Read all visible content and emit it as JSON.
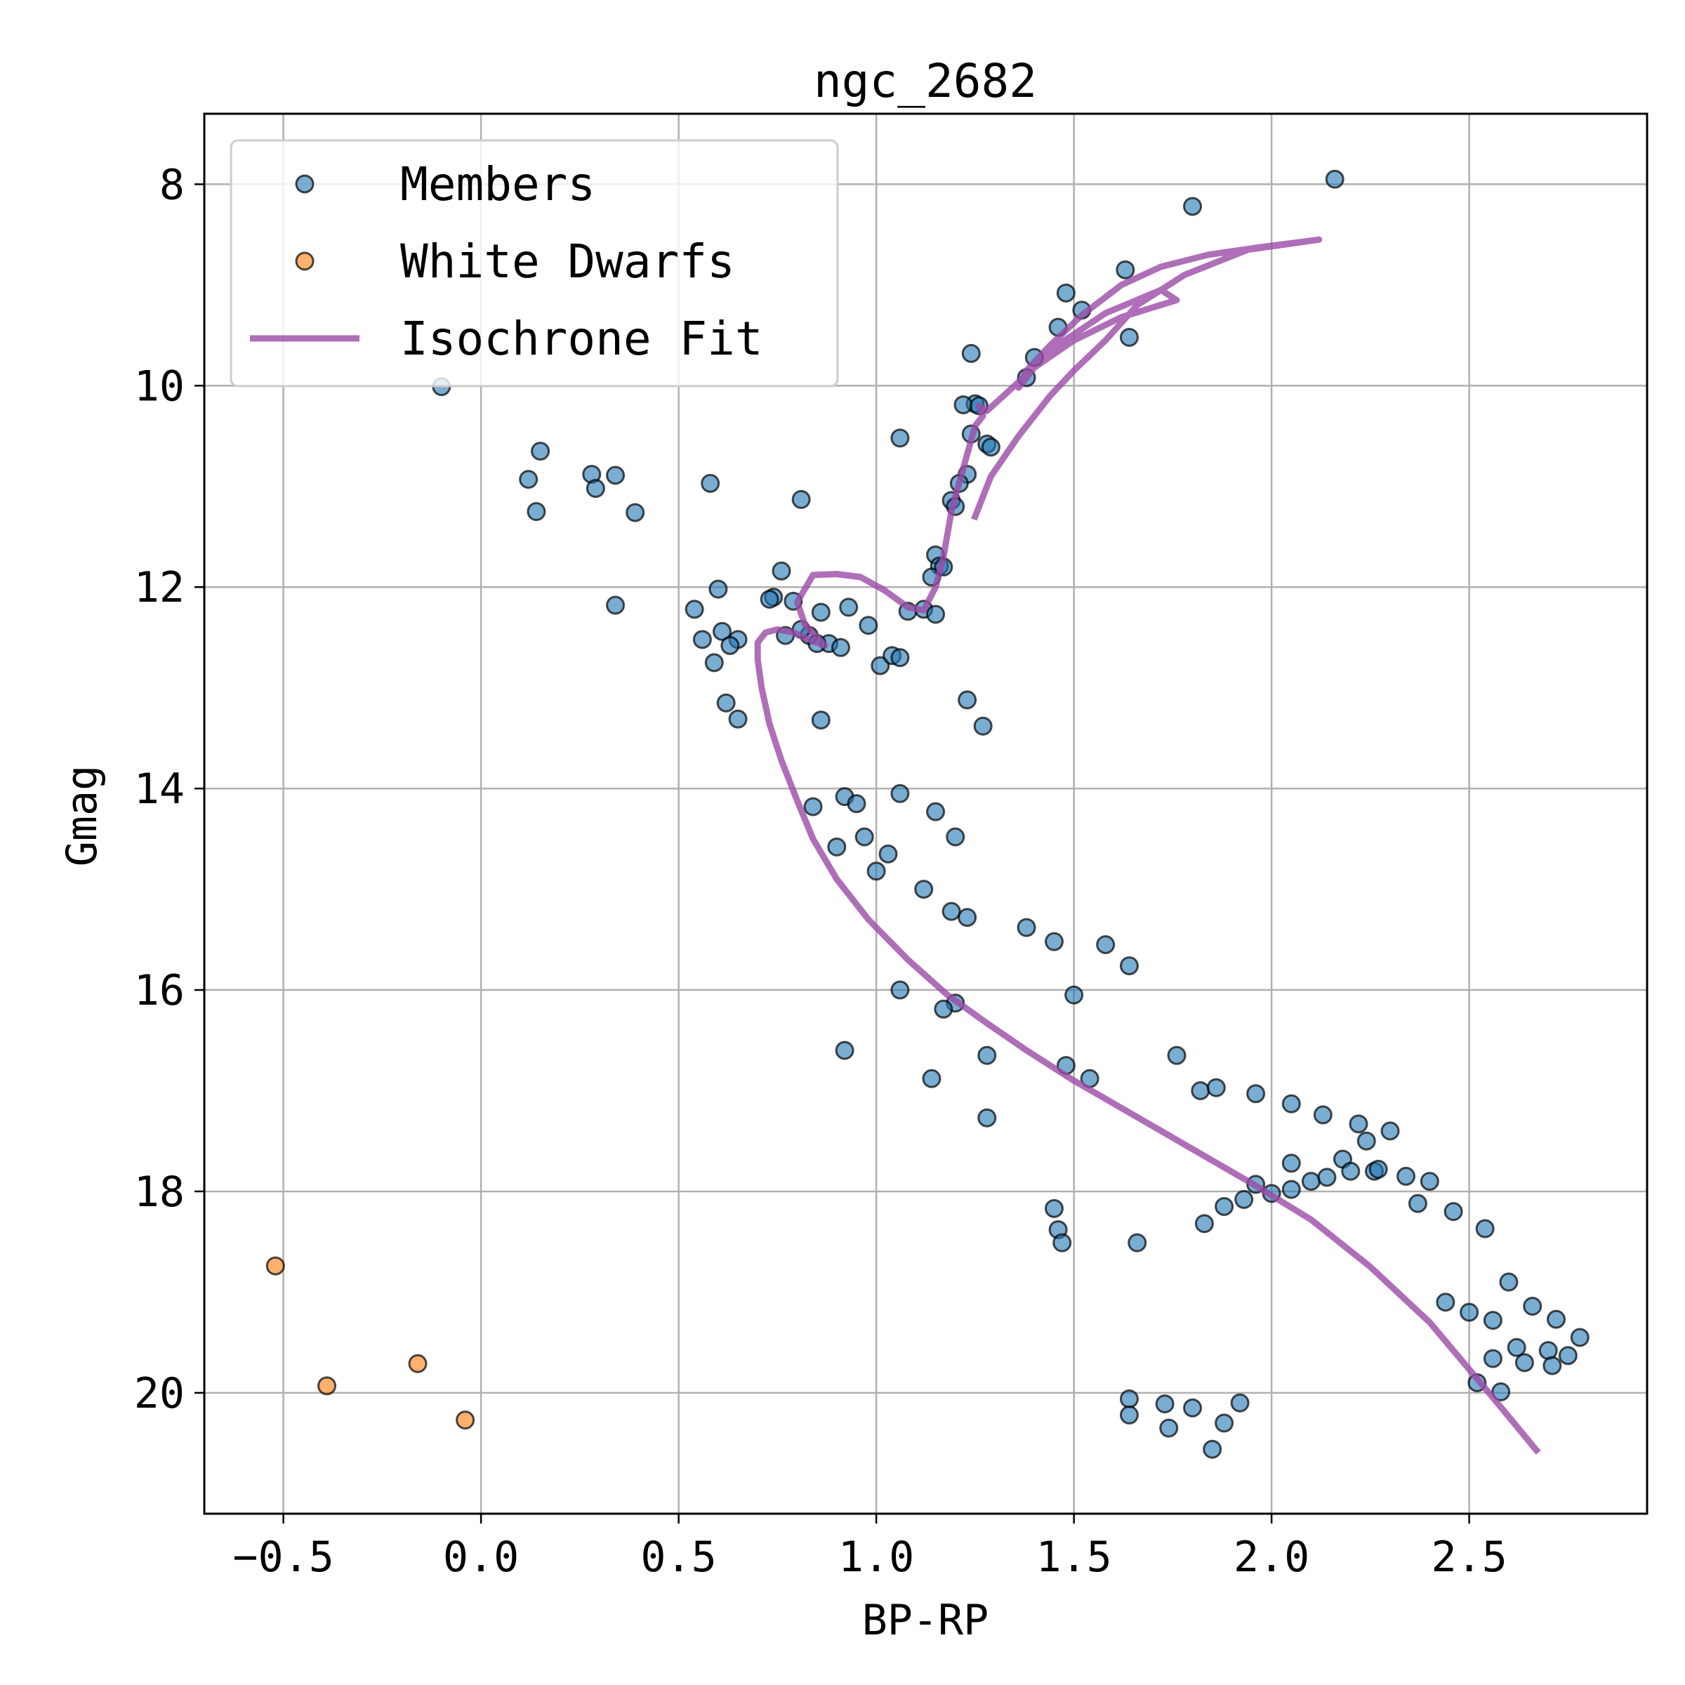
{
  "chart_data": {
    "type": "scatter",
    "title": "ngc_2682",
    "xlabel": "BP-RP",
    "ylabel": "Gmag",
    "xlim": [
      -0.7,
      2.95
    ],
    "ylim": [
      21.2,
      7.3
    ],
    "y_inverted": true,
    "grid": true,
    "legend_position": "top-left",
    "x_ticks": [
      {
        "value": -0.5,
        "label": "−0.5"
      },
      {
        "value": 0.0,
        "label": "0.0"
      },
      {
        "value": 0.5,
        "label": "0.5"
      },
      {
        "value": 1.0,
        "label": "1.0"
      },
      {
        "value": 1.5,
        "label": "1.5"
      },
      {
        "value": 2.0,
        "label": "2.0"
      },
      {
        "value": 2.5,
        "label": "2.5"
      }
    ],
    "y_ticks": [
      {
        "value": 8,
        "label": "8"
      },
      {
        "value": 10,
        "label": "10"
      },
      {
        "value": 12,
        "label": "12"
      },
      {
        "value": 14,
        "label": "14"
      },
      {
        "value": 16,
        "label": "16"
      },
      {
        "value": 18,
        "label": "18"
      },
      {
        "value": 20,
        "label": "20"
      }
    ],
    "series": [
      {
        "name": "Members",
        "kind": "scatter",
        "color": "#1f77b4",
        "edge_color": "#000000",
        "alpha": 0.6,
        "x": [
          2.16,
          1.8,
          1.63,
          1.48,
          1.52,
          1.46,
          1.64,
          1.24,
          1.4,
          1.38,
          -0.1,
          1.25,
          1.22,
          1.26,
          1.28,
          1.24,
          1.06,
          1.29,
          0.15,
          0.12,
          0.28,
          0.29,
          0.34,
          0.14,
          0.39,
          0.58,
          0.81,
          1.23,
          1.21,
          1.19,
          1.2,
          1.15,
          1.16,
          1.14,
          1.17,
          0.76,
          0.6,
          0.74,
          0.73,
          0.79,
          0.34,
          0.54,
          0.86,
          0.93,
          0.98,
          1.08,
          1.12,
          1.15,
          0.56,
          0.61,
          0.65,
          0.59,
          0.63,
          0.83,
          0.88,
          0.91,
          1.01,
          1.04,
          1.06,
          0.81,
          0.77,
          0.85,
          1.23,
          0.62,
          0.65,
          0.86,
          1.27,
          1.06,
          1.15,
          0.92,
          0.95,
          0.84,
          0.97,
          0.9,
          1.03,
          1.2,
          1.0,
          1.12,
          1.19,
          1.23,
          1.38,
          1.45,
          1.58,
          1.64,
          1.5,
          1.2,
          1.17,
          1.06,
          1.28,
          0.92,
          1.48,
          1.54,
          1.76,
          1.82,
          1.86,
          1.96,
          2.05,
          2.13,
          2.22,
          2.24,
          2.3,
          1.14,
          1.28,
          1.96,
          2.05,
          2.18,
          2.26,
          2.37,
          2.46,
          2.54,
          2.6,
          2.66,
          2.72,
          2.78,
          2.75,
          2.7,
          2.62,
          2.56,
          2.5,
          2.44,
          1.45,
          1.46,
          1.47,
          1.66,
          1.83,
          1.88,
          1.93,
          2.0,
          2.05,
          2.1,
          2.14,
          2.2,
          2.27,
          2.34,
          2.4,
          1.64,
          1.64,
          1.73,
          1.74,
          1.8,
          1.85,
          1.88,
          1.92,
          2.56,
          2.64,
          2.71,
          2.52,
          2.58
        ],
        "y": [
          7.95,
          8.22,
          8.85,
          9.08,
          9.25,
          9.42,
          9.52,
          9.68,
          9.72,
          9.92,
          10.01,
          10.18,
          10.19,
          10.2,
          10.58,
          10.48,
          10.52,
          10.61,
          10.65,
          10.93,
          10.88,
          11.02,
          10.89,
          11.25,
          11.26,
          10.97,
          11.13,
          10.88,
          10.97,
          11.14,
          11.2,
          11.68,
          11.79,
          11.9,
          11.8,
          11.84,
          12.02,
          12.1,
          12.12,
          12.14,
          12.18,
          12.22,
          12.25,
          12.2,
          12.38,
          12.24,
          12.22,
          12.27,
          12.52,
          12.44,
          12.52,
          12.75,
          12.58,
          12.48,
          12.56,
          12.6,
          12.78,
          12.68,
          12.7,
          12.42,
          12.48,
          12.56,
          13.12,
          13.15,
          13.31,
          13.32,
          13.38,
          14.05,
          14.23,
          14.08,
          14.15,
          14.18,
          14.48,
          14.58,
          14.65,
          14.48,
          14.82,
          15.0,
          15.22,
          15.28,
          15.38,
          15.52,
          15.55,
          15.76,
          16.05,
          16.13,
          16.19,
          16.0,
          16.65,
          16.6,
          16.75,
          16.88,
          16.65,
          17.0,
          16.97,
          17.03,
          17.13,
          17.24,
          17.33,
          17.5,
          17.4,
          16.88,
          17.27,
          17.93,
          17.72,
          17.68,
          17.8,
          18.12,
          18.2,
          18.37,
          18.9,
          19.14,
          19.27,
          19.45,
          19.63,
          19.58,
          19.55,
          19.28,
          19.2,
          19.1,
          18.17,
          18.38,
          18.51,
          18.51,
          18.32,
          18.15,
          18.08,
          18.02,
          17.98,
          17.9,
          17.86,
          17.8,
          17.78,
          17.85,
          17.9,
          20.06,
          20.22,
          20.11,
          20.35,
          20.15,
          20.56,
          20.3,
          20.1,
          19.66,
          19.7,
          19.73,
          19.9,
          19.99
        ]
      },
      {
        "name": "White Dwarfs",
        "kind": "scatter",
        "color": "#ff7f0e",
        "edge_color": "#000000",
        "alpha": 0.6,
        "x": [
          -0.52,
          -0.39,
          -0.16,
          -0.04
        ],
        "y": [
          18.74,
          19.93,
          19.71,
          20.27
        ]
      },
      {
        "name": "Isochrone Fit",
        "kind": "line",
        "color": "#9b4aa6",
        "x": [
          2.67,
          2.55,
          2.4,
          2.25,
          2.1,
          1.95,
          1.8,
          1.65,
          1.5,
          1.38,
          1.28,
          1.18,
          1.08,
          0.98,
          0.9,
          0.84,
          0.8,
          0.76,
          0.73,
          0.71,
          0.7,
          0.7,
          0.72,
          0.75,
          0.79,
          0.83,
          0.87,
          0.82,
          0.8,
          0.84,
          0.9,
          0.96,
          1.02,
          1.08,
          1.12,
          1.15,
          1.17,
          1.19,
          1.22,
          1.25,
          1.27,
          1.26,
          1.28,
          1.35,
          1.45,
          1.58,
          1.72,
          1.76,
          1.62,
          1.5,
          1.4,
          1.36,
          1.38,
          1.44,
          1.52,
          1.62,
          1.72,
          1.84,
          1.98,
          2.12,
          1.94,
          1.78,
          1.66,
          1.58,
          1.5,
          1.44,
          1.36,
          1.29,
          1.25
        ],
        "y": [
          20.57,
          20.0,
          19.3,
          18.75,
          18.28,
          17.92,
          17.58,
          17.24,
          16.9,
          16.6,
          16.33,
          16.05,
          15.7,
          15.3,
          14.9,
          14.5,
          14.12,
          13.72,
          13.36,
          13.0,
          12.72,
          12.55,
          12.45,
          12.42,
          12.45,
          12.52,
          12.58,
          12.38,
          12.15,
          11.88,
          11.87,
          11.9,
          12.03,
          12.2,
          12.23,
          12.0,
          11.7,
          11.25,
          10.82,
          10.4,
          10.3,
          10.2,
          10.25,
          10.0,
          9.62,
          9.28,
          9.05,
          9.15,
          9.32,
          9.55,
          9.82,
          10.02,
          9.85,
          9.6,
          9.3,
          9.0,
          8.82,
          8.7,
          8.62,
          8.55,
          8.65,
          8.9,
          9.2,
          9.55,
          9.85,
          10.1,
          10.5,
          10.9,
          11.3
        ]
      }
    ]
  }
}
